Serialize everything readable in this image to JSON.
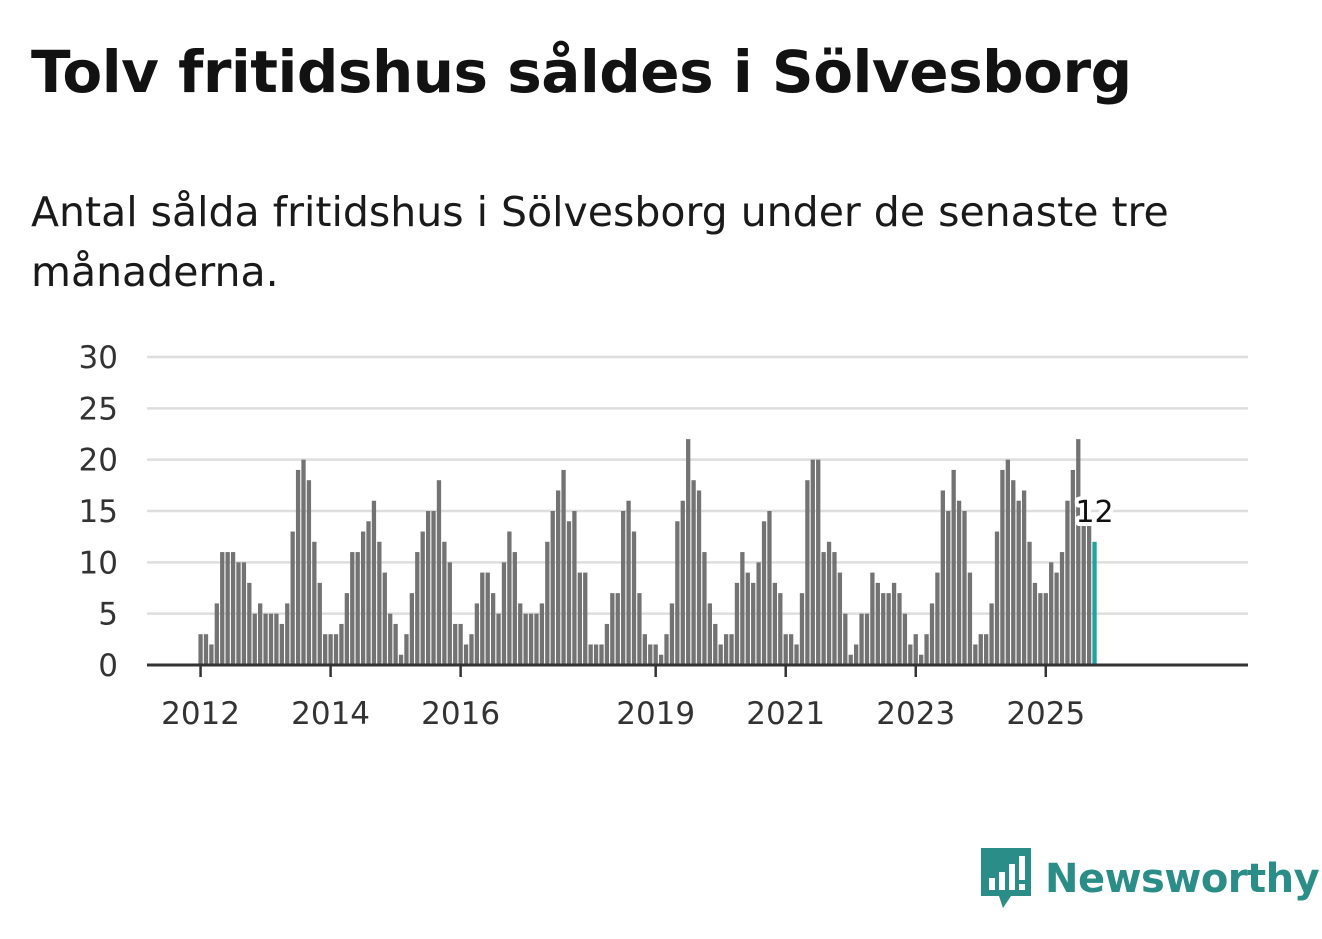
{
  "header": {
    "title": "Tolv fritidshus såldes i Sölvesborg",
    "subtitle": "Antal sålda fritidshus i Sölvesborg under de senaste tre månaderna."
  },
  "colors": {
    "bar": "#737373",
    "highlight": "#20a39e",
    "grid": "#dedede",
    "axis": "#333333"
  },
  "logo": {
    "text": "Newsworthy",
    "icon": "newsworthy-logo-icon"
  },
  "chart_data": {
    "type": "bar",
    "title": "Tolv fritidshus såldes i Sölvesborg",
    "xlabel": "",
    "ylabel": "",
    "ylim": [
      0,
      30
    ],
    "yticks": [
      0,
      5,
      10,
      15,
      20,
      25,
      30
    ],
    "grid": true,
    "highlight_last": true,
    "last_value_label": "12",
    "xticks": [
      {
        "label": "2012",
        "index": 1
      },
      {
        "label": "2014",
        "index": 25
      },
      {
        "label": "2016",
        "index": 49
      },
      {
        "label": "2019",
        "index": 85
      },
      {
        "label": "2021",
        "index": 109
      },
      {
        "label": "2023",
        "index": 133
      },
      {
        "label": "2025",
        "index": 157
      }
    ],
    "start_month": "2011-12",
    "values": [
      0,
      3,
      3,
      2,
      6,
      11,
      11,
      11,
      10,
      10,
      8,
      5,
      6,
      5,
      5,
      5,
      4,
      6,
      13,
      19,
      20,
      18,
      12,
      8,
      3,
      3,
      3,
      4,
      7,
      11,
      11,
      13,
      14,
      16,
      12,
      9,
      5,
      4,
      1,
      3,
      7,
      11,
      13,
      15,
      15,
      18,
      12,
      10,
      4,
      4,
      2,
      3,
      6,
      9,
      9,
      7,
      5,
      10,
      13,
      11,
      6,
      5,
      5,
      5,
      6,
      12,
      15,
      17,
      19,
      14,
      15,
      9,
      9,
      2,
      2,
      2,
      4,
      7,
      7,
      15,
      16,
      13,
      7,
      3,
      2,
      2,
      1,
      3,
      6,
      14,
      16,
      22,
      18,
      17,
      11,
      6,
      4,
      2,
      3,
      3,
      8,
      11,
      9,
      8,
      10,
      14,
      15,
      8,
      7,
      3,
      3,
      2,
      7,
      18,
      20,
      20,
      11,
      12,
      11,
      9,
      5,
      1,
      2,
      5,
      5,
      9,
      8,
      7,
      7,
      8,
      7,
      5,
      2,
      3,
      1,
      3,
      6,
      9,
      17,
      15,
      19,
      16,
      15,
      9,
      2,
      3,
      3,
      6,
      13,
      19,
      20,
      18,
      16,
      17,
      12,
      8,
      7,
      7,
      10,
      9,
      11,
      16,
      19,
      22,
      15,
      14,
      12
    ]
  }
}
